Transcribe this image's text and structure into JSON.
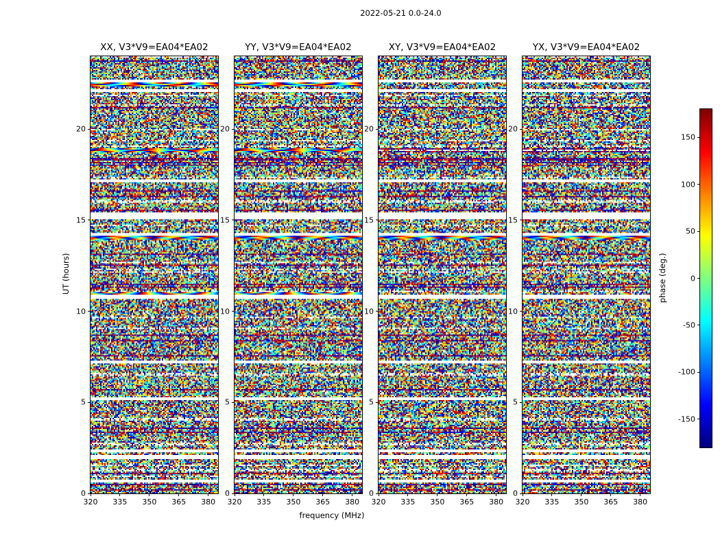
{
  "figure": {
    "title": "2022-05-21 0.0-24.0",
    "xlabel": "frequency (MHz)",
    "ylabel": "UT (hours)",
    "colorbar_label": "phase (deg.)"
  },
  "chart_data": {
    "type": "heatmap",
    "title": "2022-05-21 0.0-24.0",
    "xlabel": "frequency (MHz)",
    "ylabel": "UT (hours)",
    "x_range": [
      320,
      385
    ],
    "y_range": [
      0,
      24
    ],
    "xticks": [
      320,
      335,
      350,
      365,
      380
    ],
    "yticks": [
      0,
      5,
      10,
      15,
      20
    ],
    "subplots": [
      {
        "title": "XX, V3*V9=EA04*EA02",
        "polarization": "XX",
        "baseline": "V3*V9=EA04*EA02"
      },
      {
        "title": "YY, V3*V9=EA04*EA02",
        "polarization": "YY",
        "baseline": "V3*V9=EA04*EA02"
      },
      {
        "title": "XY, V3*V9=EA04*EA02",
        "polarization": "XY",
        "baseline": "V3*V9=EA04*EA02"
      },
      {
        "title": "YX, V3*V9=EA04*EA02",
        "polarization": "YX",
        "baseline": "V3*V9=EA04*EA02"
      }
    ],
    "colorbar": {
      "label": "phase (deg.)",
      "ticks": [
        150,
        100,
        50,
        0,
        -50,
        -100,
        -150
      ],
      "range": [
        -180,
        180
      ],
      "colormap": "jet"
    },
    "content_description": "Interferometric visibility phase versus frequency (MHz) and UT (hours); phases are noise-like spanning -180 to 180 deg, with horizontal white rows where data are flagged and a few coherent rainbow phase-gradient rows",
    "flagged_ut_ranges": [
      [
        22.55,
        22.72
      ],
      [
        22.05,
        22.2
      ],
      [
        17.1,
        17.22
      ],
      [
        15.05,
        15.45
      ],
      [
        14.18,
        14.3
      ],
      [
        10.65,
        10.88
      ],
      [
        7.15,
        7.28
      ],
      [
        5.15,
        5.28
      ],
      [
        2.28,
        2.42
      ],
      [
        1.85,
        2.08
      ],
      [
        0.62,
        0.74
      ]
    ],
    "coherent_ut_rows": [
      {
        "ut": 22.45,
        "pols": "XX,YY"
      },
      {
        "ut": 18.85,
        "pols": "XX,YY"
      },
      {
        "ut": 14.05,
        "pols": "all"
      },
      {
        "ut": 10.95,
        "pols": "XX,YY"
      }
    ]
  }
}
